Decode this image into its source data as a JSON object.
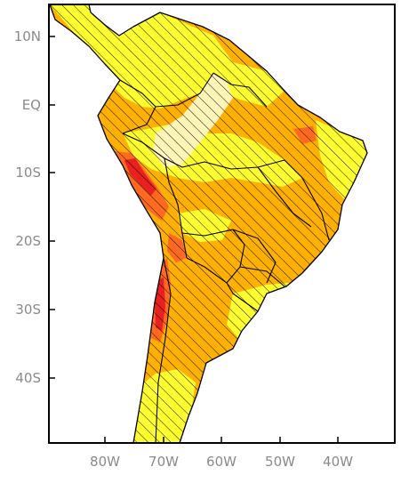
{
  "map": {
    "latitude_labels": [
      "10N",
      "EQ",
      "10S",
      "20S",
      "30S",
      "40S"
    ],
    "longitude_labels": [
      "80W",
      "70W",
      "60W",
      "50W",
      "40W"
    ],
    "hatching": "diagonal lines over most of the continent",
    "colors": {
      "ocean": "#ffffff",
      "light": "#fff5b8",
      "yellow": "#ffff30",
      "orange": "#ffb000",
      "dark_orange": "#ff6a20",
      "red": "#e82020",
      "border": "#000000",
      "tick_text": "#8a8a8a"
    }
  }
}
